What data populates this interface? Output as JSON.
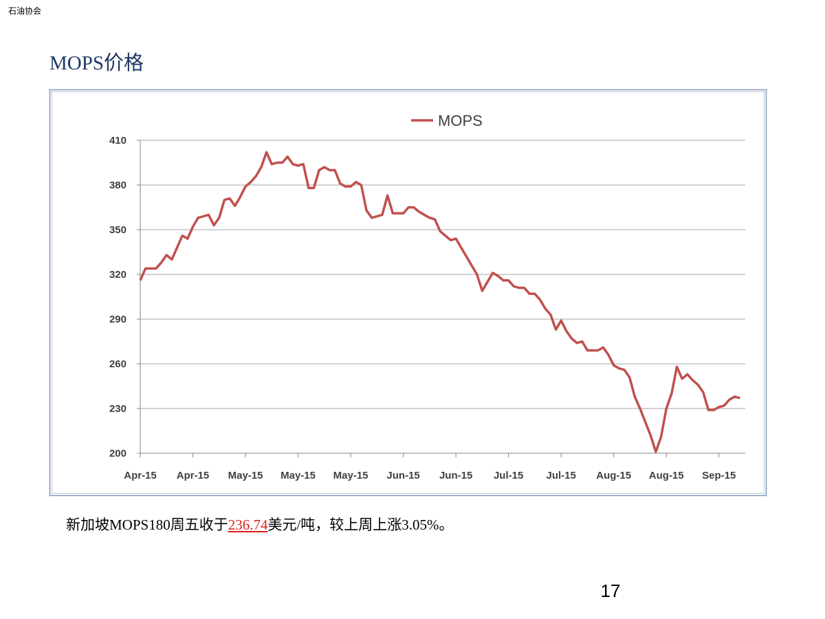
{
  "header": "石油协会",
  "page_number": "17",
  "caption": {
    "before": "新加坡MOPS180周五收于",
    "highlight": "236.74",
    "after": "美元/吨，较上周上涨3.05%。"
  },
  "chart_data": {
    "type": "line",
    "title": "MOPS价格",
    "categories": [
      "Apr-15",
      null,
      null,
      null,
      null,
      null,
      null,
      null,
      null,
      null,
      "Apr-15",
      null,
      null,
      null,
      null,
      null,
      null,
      null,
      null,
      null,
      "May-15",
      null,
      null,
      null,
      null,
      null,
      null,
      null,
      null,
      null,
      "May-15",
      null,
      null,
      null,
      null,
      null,
      null,
      null,
      null,
      null,
      "May-15",
      null,
      null,
      null,
      null,
      null,
      null,
      null,
      null,
      null,
      "Jun-15",
      null,
      null,
      null,
      null,
      null,
      null,
      null,
      null,
      null,
      "Jun-15",
      null,
      null,
      null,
      null,
      null,
      null,
      null,
      null,
      null,
      "Jul-15",
      null,
      null,
      null,
      null,
      null,
      null,
      null,
      null,
      null,
      "Jul-15",
      null,
      null,
      null,
      null,
      null,
      null,
      null,
      null,
      null,
      "Aug-15",
      null,
      null,
      null,
      null,
      null,
      null,
      null,
      null,
      null,
      "Aug-15",
      null,
      null,
      null,
      null,
      null,
      null,
      null,
      null,
      null,
      "Sep-15",
      null,
      null,
      null,
      null
    ],
    "series": [
      {
        "name": "MOPS",
        "color": "#c0504d",
        "values": [
          316,
          324,
          324,
          324,
          328,
          333,
          330,
          338,
          346,
          344,
          352,
          358,
          359,
          360,
          353,
          358,
          370,
          371,
          366,
          372,
          379,
          382,
          386,
          392,
          402,
          394,
          395,
          395,
          399,
          394,
          393,
          394,
          378,
          378,
          390,
          392,
          390,
          390,
          381,
          379,
          379,
          382,
          380,
          363,
          358,
          359,
          360,
          373,
          361,
          361,
          361,
          365,
          365,
          362,
          360,
          358,
          357,
          349,
          346,
          343,
          344,
          338,
          332,
          326,
          320,
          309,
          315,
          321,
          319,
          316,
          316,
          312,
          311,
          311,
          307,
          307,
          303,
          297,
          293,
          283,
          289,
          282,
          277,
          274,
          275,
          269,
          269,
          269,
          271,
          266,
          259,
          257,
          256,
          251,
          238,
          230,
          221,
          212,
          201,
          211,
          230,
          240,
          258,
          250,
          253,
          249,
          246,
          241,
          229,
          229,
          231,
          232,
          236,
          238,
          237
        ]
      }
    ],
    "ylim": [
      200,
      410
    ],
    "yticks": [
      200,
      230,
      260,
      290,
      320,
      350,
      380,
      410
    ],
    "grid": true,
    "legend": "top"
  }
}
